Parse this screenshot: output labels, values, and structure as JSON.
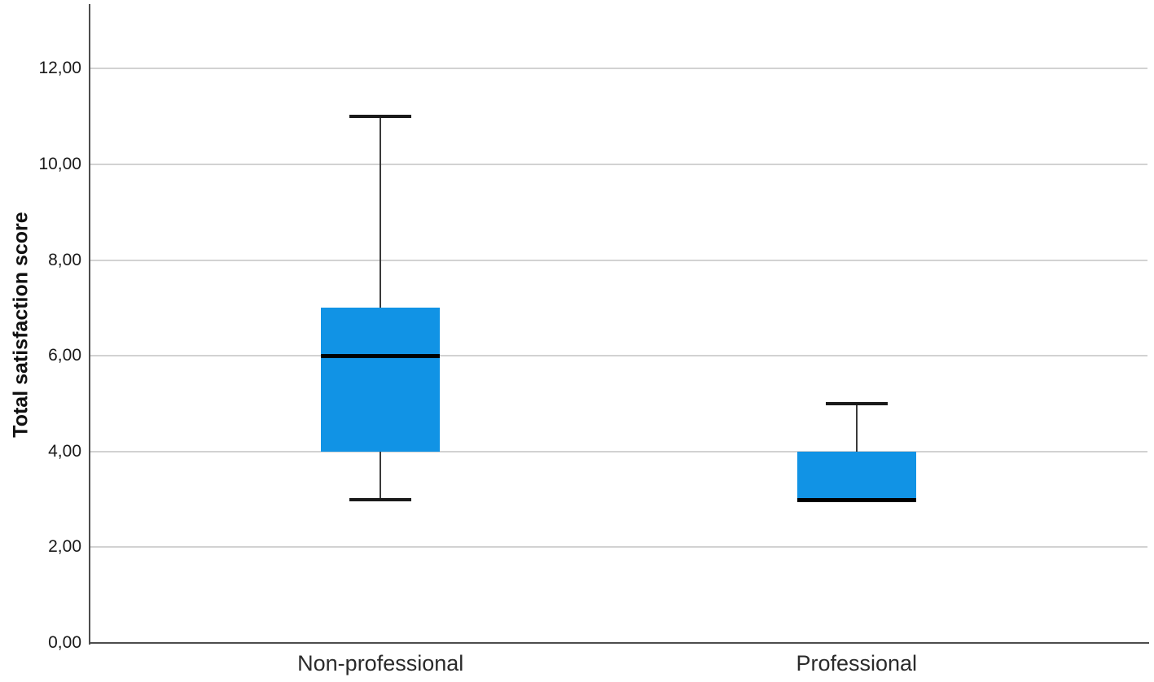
{
  "chart_data": {
    "type": "boxplot",
    "title": "",
    "xlabel": "",
    "ylabel": "Total satisfaction score",
    "ylim": [
      0,
      13.3
    ],
    "grid": "horizontal-only",
    "legend": "none",
    "decimal_separator": ",",
    "yticks": [
      {
        "value": 0,
        "label": "0,00"
      },
      {
        "value": 2,
        "label": "2,00"
      },
      {
        "value": 4,
        "label": "4,00"
      },
      {
        "value": 6,
        "label": "6,00"
      },
      {
        "value": 8,
        "label": "8,00"
      },
      {
        "value": 10,
        "label": "10,00"
      },
      {
        "value": 12,
        "label": "12,00"
      }
    ],
    "categories": [
      "Non-professional",
      "Professional"
    ],
    "boxes": [
      {
        "category": "Non-professional",
        "whisker_low": 3,
        "q1": 4,
        "median": 6,
        "q3": 7,
        "whisker_high": 11
      },
      {
        "category": "Professional",
        "whisker_low": 3,
        "q1": 3,
        "median": 3,
        "q3": 4,
        "whisker_high": 5
      }
    ],
    "colors": {
      "box_fill": "#1193e5",
      "median": "#000000",
      "whisker": "#3a3a3a",
      "whisker_cap": "#1a1a1a",
      "gridline": "#d2d2d2",
      "axis": "#4d4d4d",
      "background": "#ffffff",
      "text": "#1a1a1a"
    }
  }
}
